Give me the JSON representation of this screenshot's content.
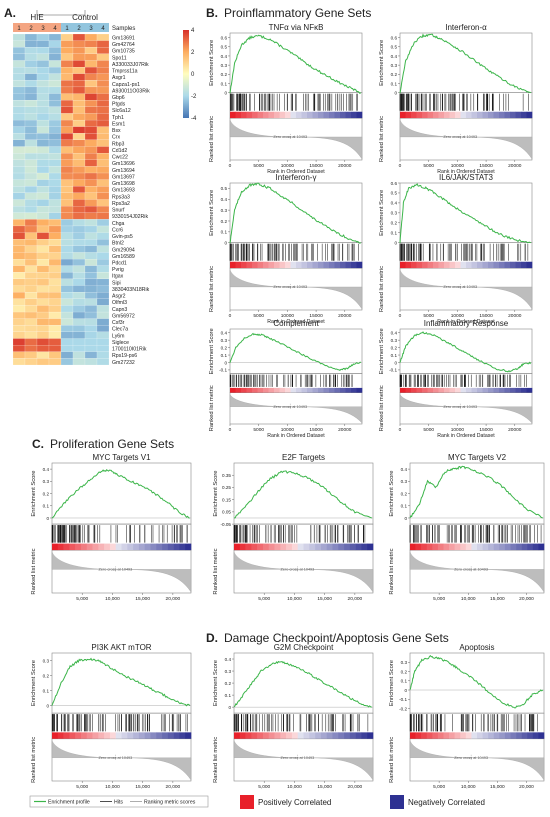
{
  "panels": {
    "a": {
      "letter": "A."
    },
    "b": {
      "letter": "B.",
      "title": "Proinflammatory Gene Sets"
    },
    "c": {
      "letter": "C.",
      "title": "Proliferation Gene Sets"
    },
    "d": {
      "letter": "D.",
      "title": "Damage Checkpoint/Apoptosis Gene Sets"
    }
  },
  "heatmap": {
    "group_labels": [
      "HIE",
      "Control"
    ],
    "sample_numbers": [
      "1",
      "2",
      "3",
      "4",
      "1",
      "2",
      "3",
      "4"
    ],
    "samples_label": "Samples",
    "colorbar_ticks": [
      "4",
      "2",
      "0",
      "-2",
      "-4"
    ],
    "colorbar_values": [
      4,
      2,
      0,
      -2,
      -4
    ],
    "colors": {
      "high": "#d7302a",
      "mid_high": "#fdae61",
      "mid": "#fffdbf",
      "mid_low": "#abd9e9",
      "low": "#4575b4",
      "group_hie": "#f4a582",
      "group_control": "#92c5de"
    },
    "genes": [
      "Gm13691",
      "Gm42764",
      "Gm10735",
      "Spo11",
      "A330033J07Rik",
      "Tmprss11a",
      "Asgr1",
      "Capza1-ps1",
      "A930011O03Rik",
      "Gbp6",
      "Ptgds",
      "Slc6a12",
      "Tph1",
      "Esm1",
      "Bsx",
      "Crx",
      "Rbp3",
      "Cd1d2",
      "Cwc22",
      "Gm13696",
      "Gm13694",
      "Gm13697",
      "Gm13698",
      "Gm13693",
      "Rps3a3",
      "Rps3a2",
      "Snurf",
      "9330154J02Rik",
      "Chga",
      "Ccr6",
      "Gvin-ps5",
      "Btnl2",
      "Gm29094",
      "Gm16589",
      "Pdcd1",
      "Pvrig",
      "Itgax",
      "Sipi",
      "3830403N18Rik",
      "Asgr2",
      "Olfml3",
      "Capn3",
      "Gm56972",
      "Csf3r",
      "Clec7a",
      "Ly6m",
      "Siglece",
      "1700110I01Rik",
      "Rps19-ps6",
      "Gm27232"
    ]
  },
  "chart_data": [
    {
      "type": "line",
      "title": "TNFα via NFκB",
      "ylabel": "Enrichment Score",
      "ylabel2": "Ranked list metric",
      "xlabel": "Rank in Ordered Dataset",
      "x": [
        0,
        800,
        2000,
        3500,
        5000,
        7000,
        9000,
        11000,
        13000,
        15000,
        17000,
        19000,
        21000,
        22800
      ],
      "y": [
        0,
        0.32,
        0.52,
        0.6,
        0.62,
        0.58,
        0.5,
        0.42,
        0.33,
        0.25,
        0.18,
        0.11,
        0.05,
        0
      ],
      "ylim": [
        0,
        0.65
      ],
      "yticks": [
        0,
        0.1,
        0.2,
        0.3,
        0.4,
        0.5,
        0.6
      ],
      "xlim": [
        0,
        23000
      ],
      "xticks": [
        0,
        5000,
        10000,
        15000,
        20000
      ],
      "xticklabels": [
        "0",
        "5000",
        "10000",
        "15000",
        "20000"
      ],
      "zero_cross": "Zero cross at 10493"
    },
    {
      "type": "line",
      "title": "Interferon-α",
      "ylabel": "Enrichment Score",
      "ylabel2": "Ranked list metric",
      "xlabel": "Rank in Ordered Dataset",
      "x": [
        0,
        1000,
        2500,
        4000,
        5500,
        7000,
        9000,
        11000,
        13000,
        15000,
        17000,
        19000,
        21000,
        22800
      ],
      "y": [
        0,
        0.35,
        0.55,
        0.62,
        0.63,
        0.59,
        0.52,
        0.44,
        0.35,
        0.26,
        0.18,
        0.1,
        0.04,
        0
      ],
      "ylim": [
        0,
        0.65
      ],
      "yticks": [
        0,
        0.1,
        0.2,
        0.3,
        0.4,
        0.5,
        0.6
      ],
      "xlim": [
        0,
        23000
      ],
      "xticks": [
        0,
        5000,
        10000,
        15000,
        20000
      ],
      "xticklabels": [
        "0",
        "5000",
        "10000",
        "15000",
        "20000"
      ],
      "zero_cross": "Zero cross at 10493"
    },
    {
      "type": "line",
      "title": "Interferon-γ",
      "ylabel": "Enrichment Score",
      "ylabel2": "Ranked list metric",
      "xlabel": "Rank in Ordered Dataset",
      "x": [
        0,
        800,
        2000,
        3500,
        5000,
        7000,
        9000,
        11000,
        13000,
        15000,
        17000,
        19000,
        21000,
        22800
      ],
      "y": [
        0,
        0.3,
        0.47,
        0.53,
        0.54,
        0.5,
        0.43,
        0.36,
        0.28,
        0.21,
        0.14,
        0.08,
        0.03,
        0
      ],
      "ylim": [
        0,
        0.55
      ],
      "yticks": [
        0,
        0.1,
        0.2,
        0.3,
        0.4,
        0.5
      ],
      "xlim": [
        0,
        23000
      ],
      "xticks": [
        0,
        5000,
        10000,
        15000,
        20000
      ],
      "xticklabels": [
        "0",
        "5000",
        "10000",
        "15000",
        "20000"
      ],
      "zero_cross": "Zero cross at 10493"
    },
    {
      "type": "line",
      "title": "IL6/JAK/STAT3",
      "ylabel": "Enrichment Score",
      "ylabel2": "Ranked list metric",
      "xlabel": "Rank in Ordered Dataset",
      "x": [
        0,
        600,
        1500,
        3000,
        4500,
        6000,
        8000,
        10000,
        12000,
        14000,
        16000,
        18000,
        20000,
        22800
      ],
      "y": [
        0,
        0.4,
        0.55,
        0.58,
        0.55,
        0.5,
        0.42,
        0.34,
        0.27,
        0.2,
        0.13,
        0.07,
        0.03,
        0
      ],
      "ylim": [
        0,
        0.6
      ],
      "yticks": [
        0,
        0.1,
        0.2,
        0.3,
        0.4,
        0.5,
        0.6
      ],
      "xlim": [
        0,
        23000
      ],
      "xticks": [
        0,
        5000,
        10000,
        15000,
        20000
      ],
      "xticklabels": [
        "0",
        "5000",
        "10000",
        "15000",
        "20000"
      ],
      "zero_cross": "Zero cross at 10493"
    },
    {
      "type": "line",
      "title": "Complement",
      "ylabel": "Enrichment Score",
      "ylabel2": "Ranked list metric",
      "xlabel": "Rank in Ordered Dataset",
      "x": [
        0,
        1000,
        2500,
        4000,
        5500,
        7000,
        9000,
        11000,
        13000,
        15000,
        17000,
        19000,
        20500,
        21500,
        22800
      ],
      "y": [
        0,
        0.2,
        0.33,
        0.38,
        0.37,
        0.32,
        0.25,
        0.17,
        0.09,
        0.02,
        -0.05,
        -0.1,
        -0.08,
        -0.02,
        0
      ],
      "ylim": [
        -0.15,
        0.45
      ],
      "yticks": [
        -0.1,
        0,
        0.1,
        0.2,
        0.3,
        0.4
      ],
      "xlim": [
        0,
        23000
      ],
      "xticks": [
        0,
        5000,
        10000,
        15000,
        20000
      ],
      "xticklabels": [
        "0",
        "5000",
        "10000",
        "15000",
        "20000"
      ],
      "zero_cross": "Zero cross at 10493"
    },
    {
      "type": "line",
      "title": "Inflammatory Response",
      "ylabel": "Enrichment Score",
      "ylabel2": "Ranked list metric",
      "xlabel": "Rank in Ordered Dataset",
      "x": [
        0,
        1000,
        2500,
        4000,
        5500,
        7000,
        9000,
        11000,
        13000,
        15000,
        17000,
        19000,
        20500,
        21500,
        22800
      ],
      "y": [
        0,
        0.22,
        0.36,
        0.4,
        0.38,
        0.32,
        0.24,
        0.15,
        0.06,
        -0.02,
        -0.09,
        -0.12,
        -0.08,
        -0.02,
        0
      ],
      "ylim": [
        -0.15,
        0.45
      ],
      "yticks": [
        -0.1,
        0,
        0.1,
        0.2,
        0.3,
        0.4
      ],
      "xlim": [
        0,
        23000
      ],
      "xticks": [
        0,
        5000,
        10000,
        15000,
        20000
      ],
      "xticklabels": [
        "0",
        "5000",
        "10000",
        "15000",
        "20000"
      ],
      "zero_cross": "Zero cross at 10493"
    },
    {
      "type": "line",
      "title": "MYC Targets V1",
      "ylabel": "Enrichment Score",
      "ylabel2": "Ranked list metric",
      "xlabel": "",
      "x": [
        0,
        2000,
        4000,
        6000,
        8000,
        9500,
        11000,
        13000,
        15000,
        17000,
        19000,
        21000,
        22800
      ],
      "y": [
        0,
        0.12,
        0.22,
        0.3,
        0.38,
        0.39,
        0.35,
        0.3,
        0.26,
        0.2,
        0.13,
        0.05,
        0
      ],
      "ylim": [
        -0.05,
        0.45
      ],
      "yticks": [
        0,
        0.1,
        0.2,
        0.3,
        0.4
      ],
      "xlim": [
        0,
        23000
      ],
      "xticks": [
        5000,
        10000,
        15000,
        20000
      ],
      "xticklabels": [
        "5,000",
        "10,000",
        "15,000",
        "20,000"
      ],
      "zero_cross": "Zero cross at 10493"
    },
    {
      "type": "line",
      "title": "E2F Targets",
      "ylabel": "Enrichment Score",
      "ylabel2": "Ranked list metric",
      "xlabel": "",
      "x": [
        0,
        2000,
        4000,
        6000,
        8000,
        10000,
        12000,
        14000,
        16000,
        18000,
        20000,
        22800
      ],
      "y": [
        0,
        0.1,
        0.22,
        0.32,
        0.38,
        0.37,
        0.33,
        0.28,
        0.2,
        0.12,
        0.05,
        0
      ],
      "ylim": [
        -0.05,
        0.45
      ],
      "yticks": [
        -0.05,
        0.05,
        0.15,
        0.25,
        0.35
      ],
      "xlim": [
        0,
        23000
      ],
      "xticks": [
        5000,
        10000,
        15000,
        20000
      ],
      "xticklabels": [
        "5,000",
        "10,000",
        "15,000",
        "20,000"
      ],
      "zero_cross": "Zero cross at 10493"
    },
    {
      "type": "line",
      "title": "MYC Targets V2",
      "ylabel": "Enrichment Score",
      "ylabel2": "Ranked list metric",
      "xlabel": "",
      "x": [
        0,
        1500,
        3000,
        4500,
        6000,
        7500,
        9000,
        10500,
        12000,
        14000,
        16000,
        18000,
        20000,
        22800
      ],
      "y": [
        0,
        0.1,
        0.3,
        0.25,
        0.38,
        0.4,
        0.42,
        0.4,
        0.37,
        0.32,
        0.25,
        0.16,
        0.07,
        0
      ],
      "ylim": [
        -0.05,
        0.45
      ],
      "yticks": [
        0,
        0.1,
        0.2,
        0.3,
        0.4
      ],
      "xlim": [
        0,
        23000
      ],
      "xticks": [
        5000,
        10000,
        15000,
        20000
      ],
      "xticklabels": [
        "5,000",
        "10,000",
        "15,000",
        "20,000"
      ],
      "zero_cross": "Zero cross at 10493"
    },
    {
      "type": "line",
      "title": "PI3K AKT mTOR",
      "ylabel": "Enrichment Score",
      "ylabel2": "Ranked list metric",
      "xlabel": "",
      "x": [
        0,
        1500,
        3000,
        4500,
        6000,
        7500,
        9000,
        11000,
        13000,
        15000,
        17000,
        19000,
        21000,
        22800
      ],
      "y": [
        0,
        0.15,
        0.26,
        0.3,
        0.31,
        0.3,
        0.27,
        0.22,
        0.18,
        0.14,
        0.1,
        0.06,
        0.02,
        0
      ],
      "ylim": [
        -0.05,
        0.35
      ],
      "yticks": [
        0,
        0.1,
        0.2,
        0.3
      ],
      "xlim": [
        0,
        23000
      ],
      "xticks": [
        5000,
        10000,
        15000,
        20000
      ],
      "xticklabels": [
        "5,000",
        "10,000",
        "15,000",
        "20,000"
      ],
      "zero_cross": "Zero cross at 10493"
    },
    {
      "type": "line",
      "title": "G2M Checkpoint",
      "ylabel": "Enrichment Score",
      "ylabel2": "Ranked list metric",
      "xlabel": "",
      "x": [
        0,
        1500,
        3000,
        4500,
        6000,
        7500,
        9000,
        11000,
        13000,
        15000,
        17000,
        19000,
        21000,
        22800
      ],
      "y": [
        0,
        0.1,
        0.2,
        0.3,
        0.35,
        0.38,
        0.36,
        0.32,
        0.26,
        0.2,
        0.14,
        0.08,
        0.03,
        0
      ],
      "ylim": [
        -0.05,
        0.45
      ],
      "yticks": [
        0,
        0.1,
        0.2,
        0.3,
        0.4
      ],
      "xlim": [
        0,
        23000
      ],
      "xticks": [
        5000,
        10000,
        15000,
        20000
      ],
      "xticklabels": [
        "5,000",
        "10,000",
        "15,000",
        "20,000"
      ],
      "zero_cross": "Zero cross at 10493"
    },
    {
      "type": "line",
      "title": "Apoptosis",
      "ylabel": "Enrichment Score",
      "ylabel2": "Ranked list metric",
      "xlabel": "",
      "x": [
        0,
        800,
        2000,
        3500,
        5000,
        6500,
        8000,
        10000,
        12000,
        14000,
        16000,
        18000,
        19500,
        21000,
        22800
      ],
      "y": [
        0,
        0.2,
        0.32,
        0.36,
        0.34,
        0.3,
        0.24,
        0.16,
        0.06,
        -0.05,
        -0.14,
        -0.19,
        -0.15,
        -0.05,
        0
      ],
      "ylim": [
        -0.25,
        0.4
      ],
      "yticks": [
        -0.2,
        -0.1,
        0,
        0.1,
        0.2,
        0.3
      ],
      "xlim": [
        0,
        23000
      ],
      "xticks": [
        5000,
        10000,
        15000,
        20000
      ],
      "xticklabels": [
        "5,000",
        "10,000",
        "15,000",
        "20,000"
      ],
      "zero_cross": "Zero cross at 10493"
    }
  ],
  "legend": {
    "items": [
      "Enrichment profile",
      "Hits",
      "Ranking metric scores"
    ],
    "positive": "Positively Correlated",
    "negative": "Negatively Correlated",
    "colors": {
      "profile": "#3cb54a",
      "positive": "#e8202a",
      "negative": "#2e3192"
    }
  }
}
